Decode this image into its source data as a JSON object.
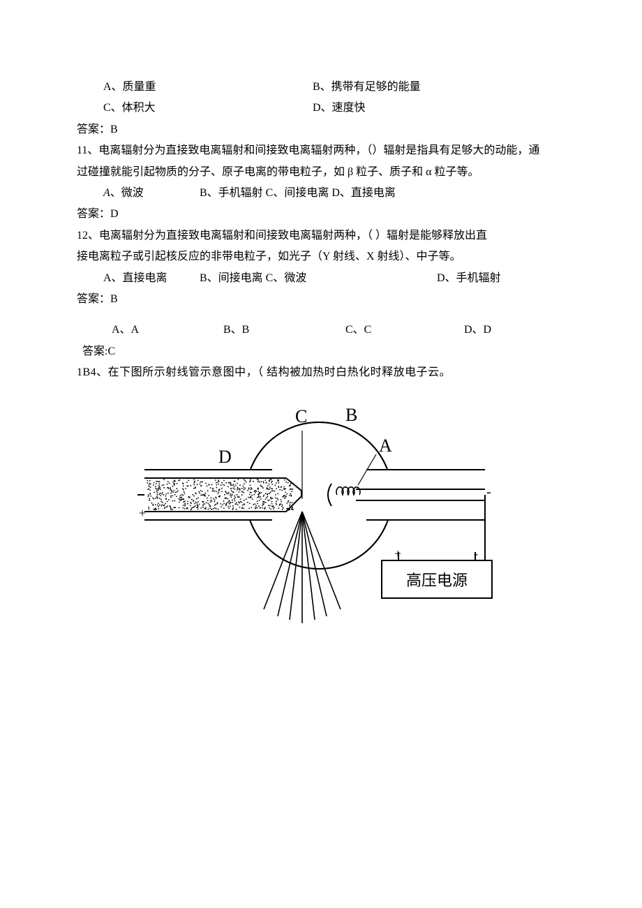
{
  "q10": {
    "optA": "A、质量重",
    "optB": "B、携带有足够的能量",
    "optC": "C、体积大",
    "optD": "D、速度快",
    "answer": "答案：B"
  },
  "q11": {
    "stem1": "11、电离辐射分为直接致电离辐射和间接致电离辐射两种，（）辐射是指具有足够大的动能，通",
    "stem2": "过碰撞就能引起物质的分子、原子电离的带电粒子，如 β 粒子、质子和 α 粒子等。",
    "optA_prefix": "A",
    "optA_rest": "、微波",
    "optBCD": "B、手机辐射 C、间接电离 D、直接电离",
    "answer": "答案：D"
  },
  "q12": {
    "stem1": "12、电离辐射分为直接致电离辐射和间接致电离辐射两种，（      ）辐射是能够释放出直",
    "stem2": "接电离粒子或引起核反应的非带电粒子，如光子（Y 射线、X 射线）、中子等。",
    "optA": "A、直接电离",
    "optBC": "B、间接电离 C、微波",
    "optD": "D、手机辐射",
    "answer": "答案：B"
  },
  "q13": {
    "optA": "A、A",
    "optB": "B、B",
    "optC": "C、C",
    "optD": "D、D",
    "answer": "答案:C"
  },
  "q14": {
    "stem": "1B4、在下图所示射线管示意图中，（ 结构被加热时白热化时释放电子云。"
  },
  "figure": {
    "labelA": "A",
    "labelB": "B",
    "labelC": "C",
    "labelD": "D",
    "plus": "+",
    "minus": "-",
    "plusminus": "+  -",
    "powerLabel": "高压电源",
    "stroke": "#000000",
    "strokeW": 2,
    "font": "22px SimSun",
    "fontBig": "26px 'Times New Roman', serif"
  },
  "layout": {
    "col1_w": 300,
    "colA_w": 160,
    "colB_w": 150,
    "colC_w": 170
  }
}
